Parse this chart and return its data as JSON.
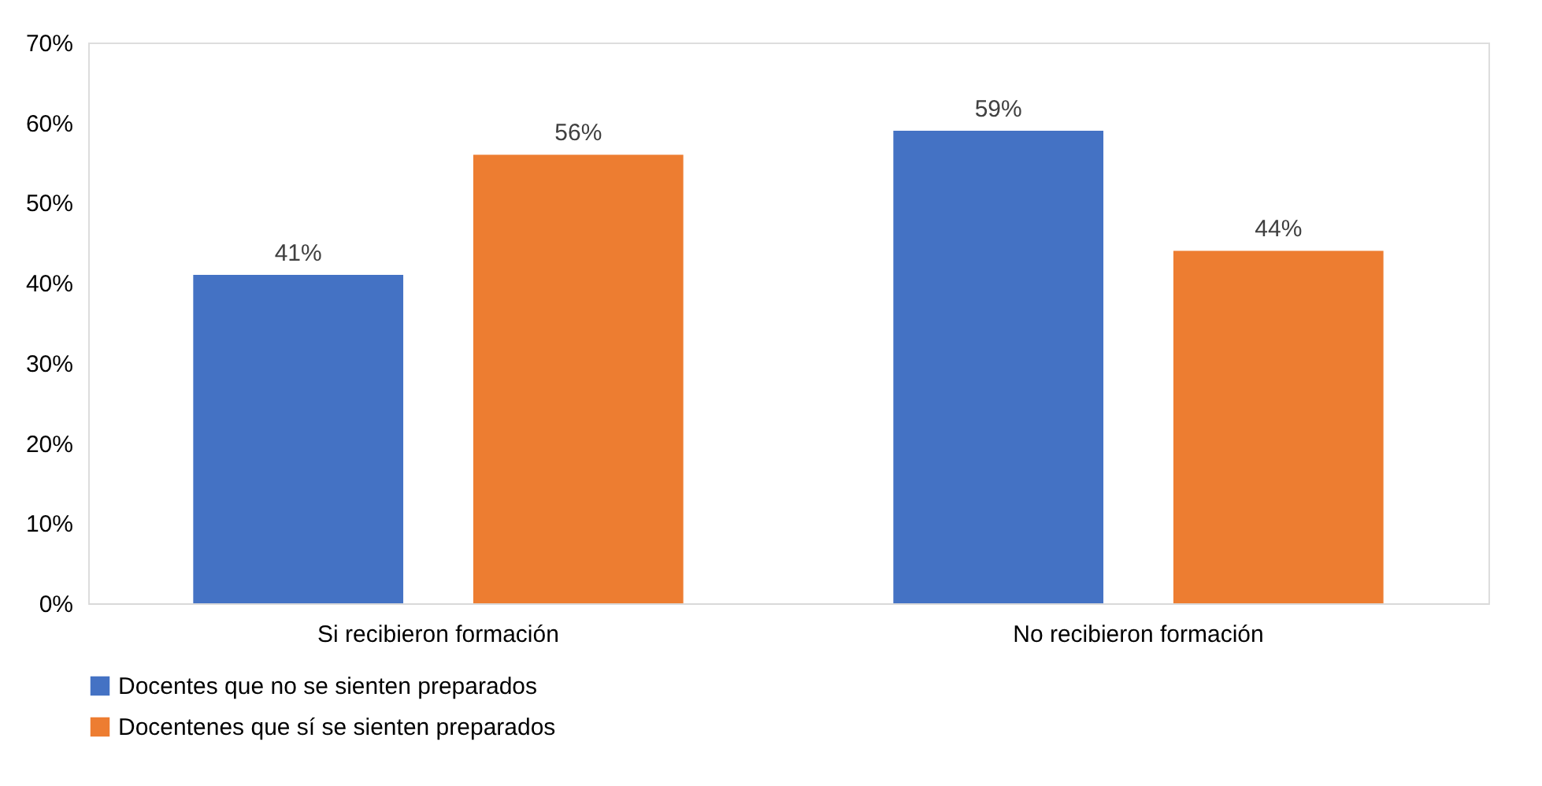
{
  "chart_data": {
    "type": "bar",
    "categories": [
      "Si recibieron formación",
      "No recibieron formación"
    ],
    "series": [
      {
        "name": "Docentes que no se sienten preparados",
        "color": "#4472c4",
        "values": [
          41,
          59
        ],
        "value_labels": [
          "41%",
          "59%"
        ]
      },
      {
        "name": "Docentenes que sí se sienten preparados",
        "color": "#ed7d31",
        "values": [
          56,
          44
        ],
        "value_labels": [
          "56%",
          "44%"
        ]
      }
    ],
    "ylim": [
      0,
      70
    ],
    "yticks": [
      {
        "value": 0,
        "label": "0%"
      },
      {
        "value": 10,
        "label": "10%"
      },
      {
        "value": 20,
        "label": "20%"
      },
      {
        "value": 30,
        "label": "30%"
      },
      {
        "value": 40,
        "label": "40%"
      },
      {
        "value": 50,
        "label": "50%"
      },
      {
        "value": 60,
        "label": "60%"
      },
      {
        "value": 70,
        "label": "70%"
      }
    ],
    "grid": false,
    "legend": "bottom"
  }
}
